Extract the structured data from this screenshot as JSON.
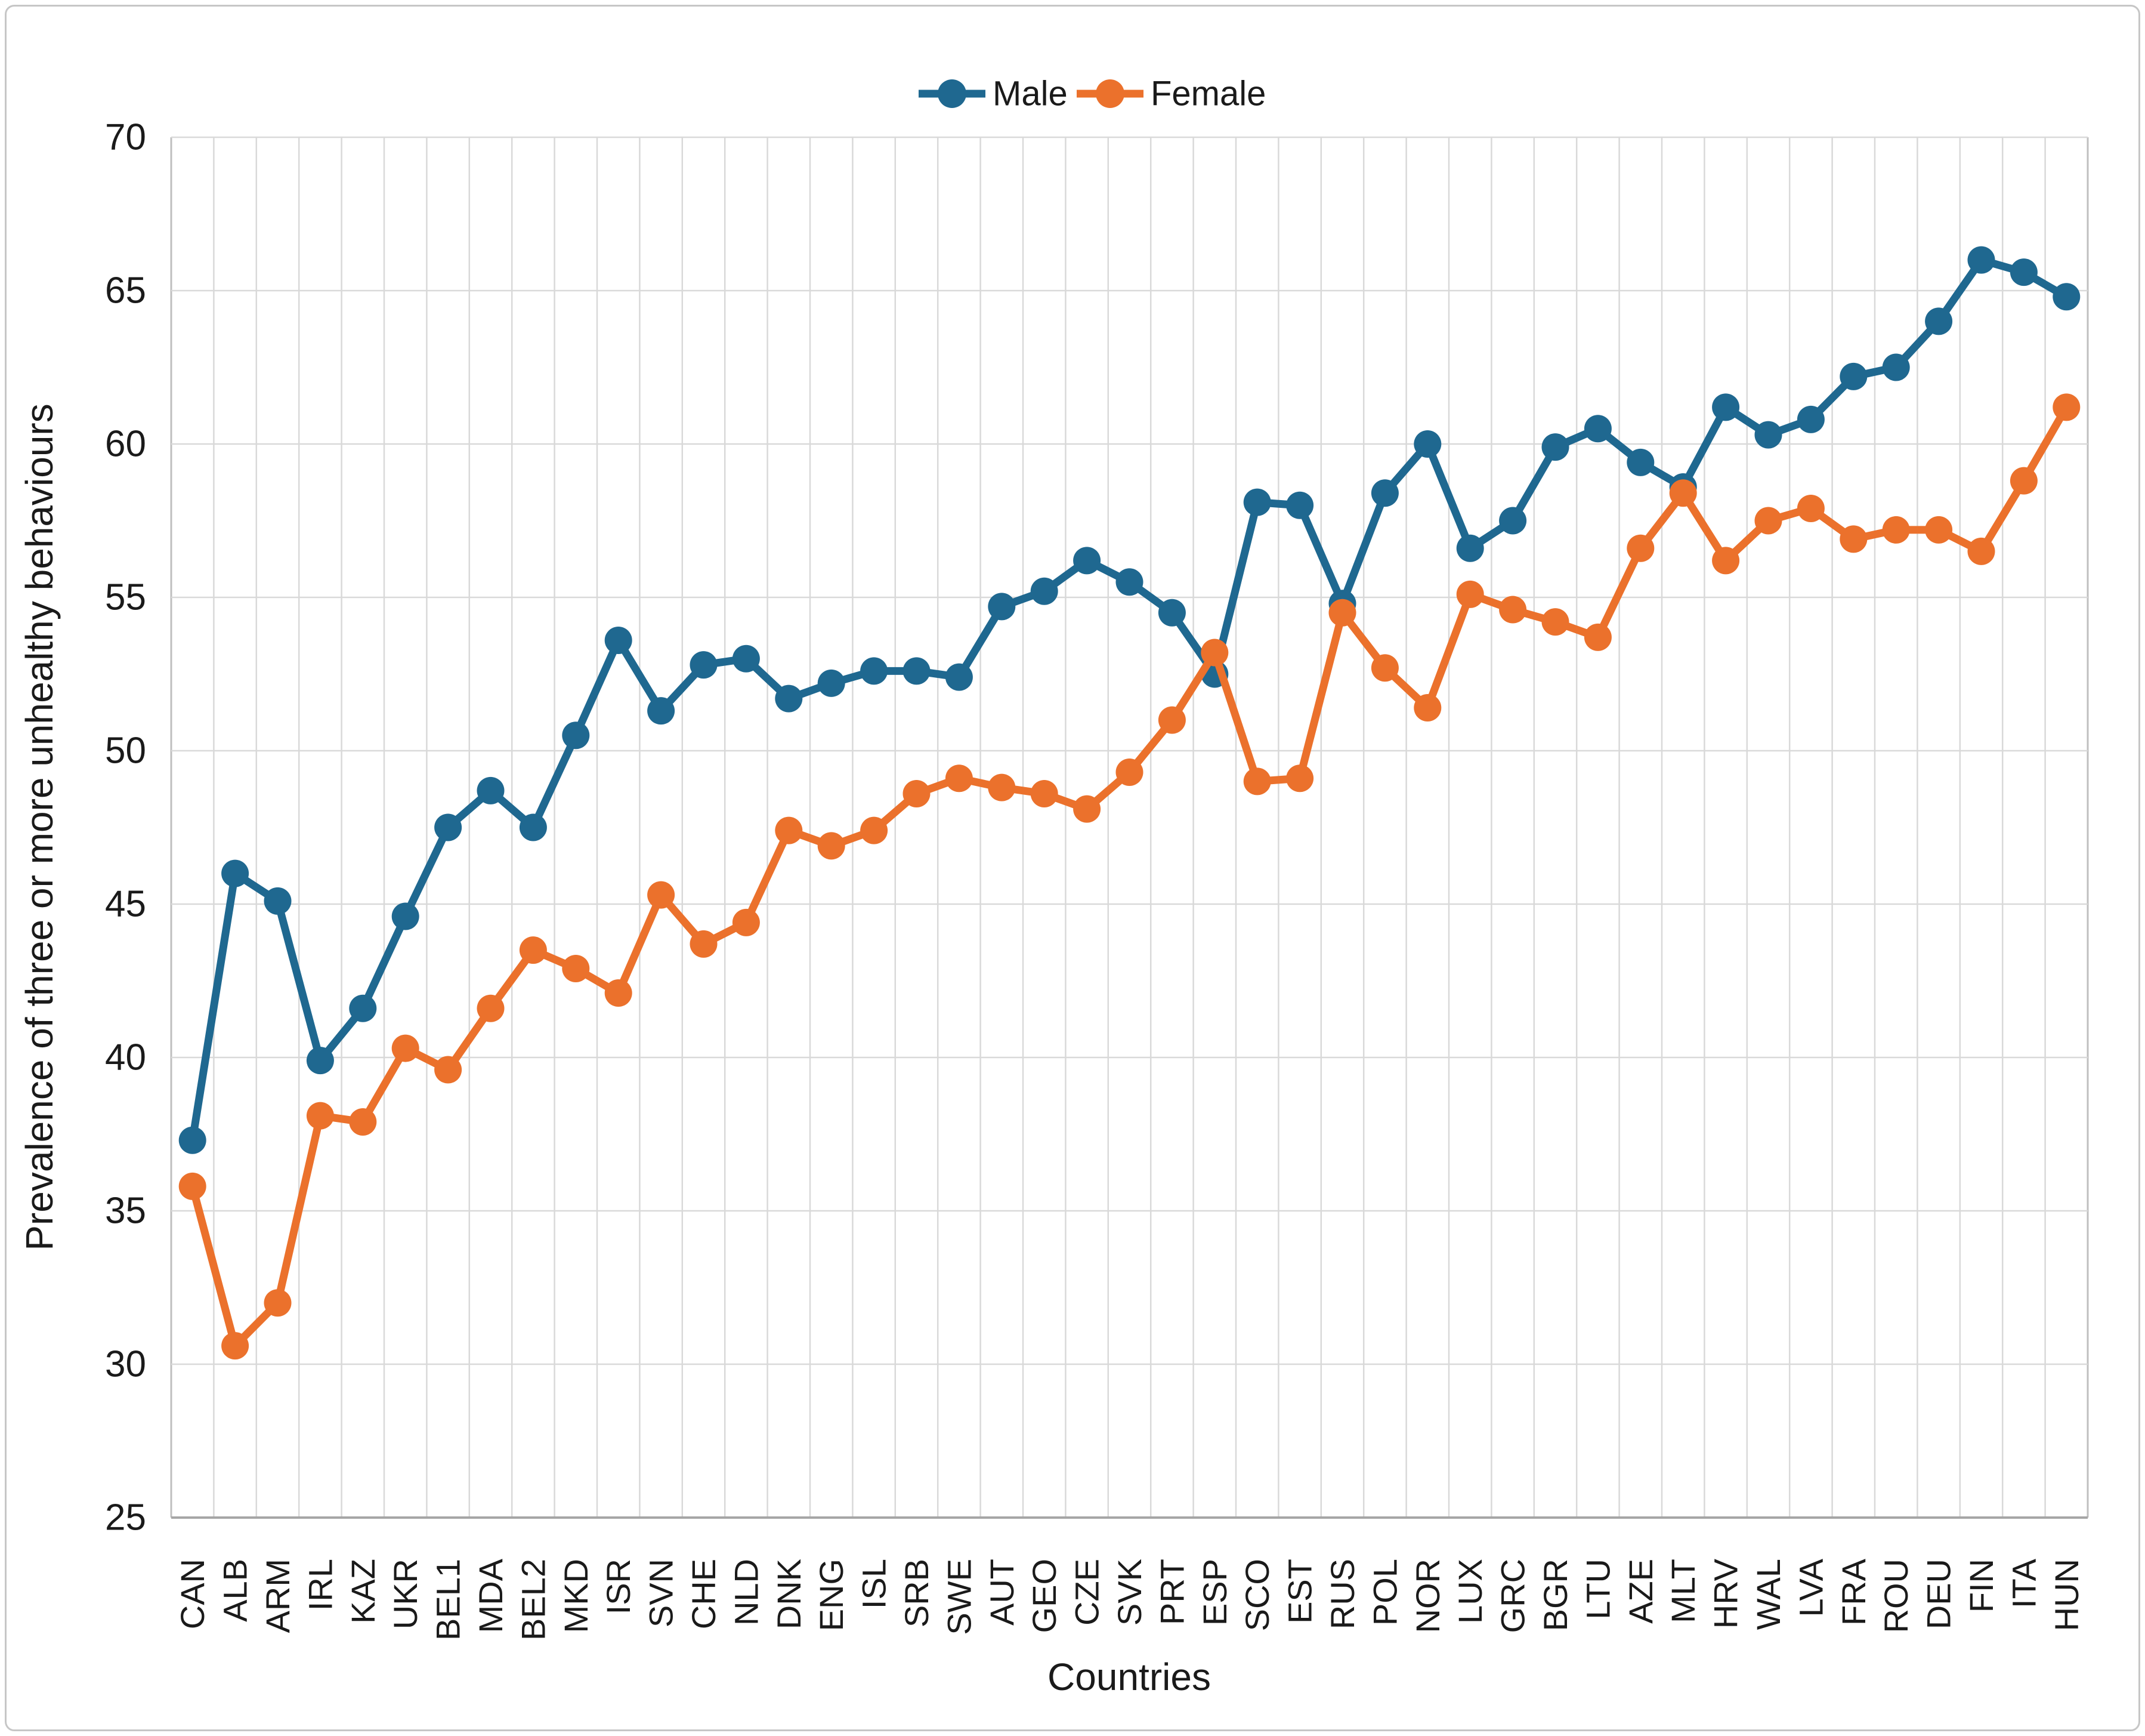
{
  "chart_data": {
    "type": "line",
    "title": "",
    "categories": [
      "CAN",
      "ALB",
      "ARM",
      "IRL",
      "KAZ",
      "UKR",
      "BEL1",
      "MDA",
      "BEL2",
      "MKD",
      "ISR",
      "SVN",
      "CHE",
      "NLD",
      "DNK",
      "ENG",
      "ISL",
      "SRB",
      "SWE",
      "AUT",
      "GEO",
      "CZE",
      "SVK",
      "PRT",
      "ESP",
      "SCO",
      "EST",
      "RUS",
      "POL",
      "NOR",
      "LUX",
      "GRC",
      "BGR",
      "LTU",
      "AZE",
      "MLT",
      "HRV",
      "WAL",
      "LVA",
      "FRA",
      "ROU",
      "DEU",
      "FIN",
      "ITA",
      "HUN"
    ],
    "series": [
      {
        "name": "Male",
        "color": "#1F6890",
        "values": [
          37.3,
          46.0,
          45.1,
          39.9,
          41.6,
          44.6,
          47.5,
          48.7,
          47.5,
          50.5,
          53.6,
          51.3,
          52.8,
          53.0,
          51.7,
          52.2,
          52.6,
          52.6,
          52.4,
          54.7,
          55.2,
          56.2,
          55.5,
          54.5,
          52.5,
          58.1,
          58.0,
          54.8,
          58.4,
          60.0,
          56.6,
          57.5,
          59.9,
          60.5,
          59.4,
          58.6,
          61.2,
          60.3,
          60.8,
          62.2,
          62.5,
          64.0,
          66.0,
          65.6,
          64.8
        ]
      },
      {
        "name": "Female",
        "color": "#EB712C",
        "values": [
          35.8,
          30.6,
          32.0,
          38.1,
          37.9,
          40.3,
          39.6,
          41.6,
          43.5,
          42.9,
          42.1,
          45.3,
          43.7,
          44.4,
          47.4,
          46.9,
          47.4,
          48.6,
          49.1,
          48.8,
          48.6,
          48.1,
          49.3,
          51.0,
          53.2,
          49.0,
          49.1,
          54.5,
          52.7,
          51.4,
          55.1,
          54.6,
          54.2,
          53.7,
          56.6,
          58.4,
          56.2,
          57.5,
          57.9,
          56.9,
          57.2,
          57.2,
          56.5,
          58.8,
          61.2
        ]
      }
    ],
    "xlabel": "Countries",
    "ylabel": "Prevalence of three or more unhealthy behaviours",
    "ylim": [
      25,
      70
    ],
    "ytick_step": 5,
    "grid": "both",
    "legend_position": "top-center",
    "marker": "circle"
  }
}
